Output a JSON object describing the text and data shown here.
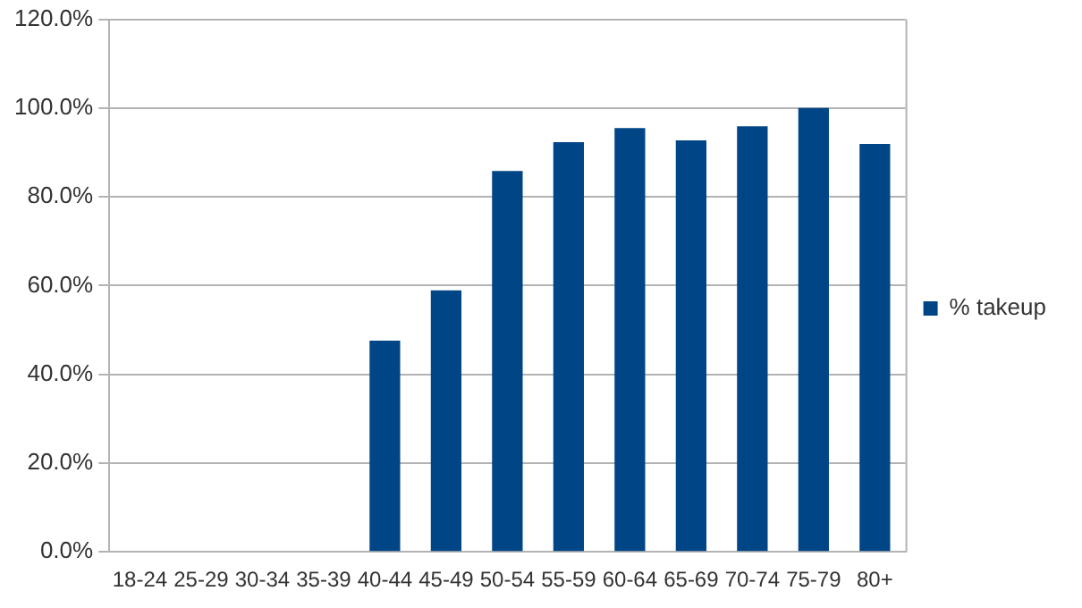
{
  "chart_data": {
    "type": "bar",
    "categories": [
      "18-24",
      "25-29",
      "30-34",
      "35-39",
      "40-44",
      "45-49",
      "50-54",
      "55-59",
      "60-64",
      "65-69",
      "70-74",
      "75-79",
      "80+"
    ],
    "series": [
      {
        "name": "% takeup",
        "color": "#004586",
        "values": [
          0,
          0,
          0,
          0,
          47.6,
          58.9,
          85.8,
          92.3,
          95.5,
          92.7,
          95.9,
          100,
          91.9
        ]
      }
    ],
    "ylim": [
      0,
      120
    ],
    "yticks": [
      {
        "value": 0,
        "label": "0.0%"
      },
      {
        "value": 20,
        "label": "20.0%"
      },
      {
        "value": 40,
        "label": "40.0%"
      },
      {
        "value": 60,
        "label": "60.0%"
      },
      {
        "value": 80,
        "label": "80.0%"
      },
      {
        "value": 100,
        "label": "100.0%"
      },
      {
        "value": 120,
        "label": "120.0%"
      }
    ],
    "grid": "y",
    "legend": "right"
  }
}
